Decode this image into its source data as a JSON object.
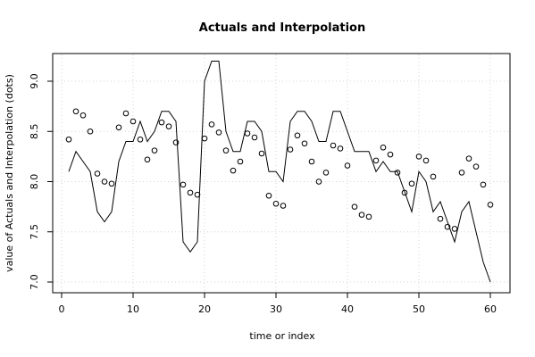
{
  "chart_data": {
    "type": "line",
    "title": "Actuals and Interpolation",
    "xlabel": "time or index",
    "ylabel": "value of Actuals and Interpolation (dots)",
    "xlim": [
      0,
      60
    ],
    "ylim": [
      7.0,
      9.2
    ],
    "x_ticks": [
      0,
      10,
      20,
      30,
      40,
      50,
      60
    ],
    "y_ticks": [
      7.0,
      7.5,
      8.0,
      8.5,
      9.0
    ],
    "x_tick_labels": [
      "0",
      "10",
      "20",
      "30",
      "40",
      "50",
      "60"
    ],
    "y_tick_labels": [
      "7.0",
      "7.5",
      "8.0",
      "8.5",
      "9.0"
    ],
    "grid": true,
    "grid_color": "#d3d3d3",
    "line_color": "#000000",
    "point_color": "#000000",
    "series": [
      {
        "style": "line",
        "x": [
          1,
          2,
          3,
          4,
          5,
          6,
          7,
          8,
          9,
          10,
          11,
          12,
          13,
          14,
          15,
          16,
          17,
          18,
          19,
          20,
          21,
          22,
          23,
          24,
          25,
          26,
          27,
          28,
          29,
          30,
          31,
          32,
          33,
          34,
          35,
          36,
          37,
          38,
          39,
          40,
          41,
          42,
          43,
          44,
          45,
          46,
          47,
          48,
          49,
          50,
          51,
          52,
          53,
          54,
          55,
          56,
          57,
          58,
          59,
          60
        ],
        "values": [
          8.1,
          8.3,
          8.2,
          8.1,
          7.7,
          7.6,
          7.7,
          8.2,
          8.4,
          8.4,
          8.6,
          8.4,
          8.5,
          8.7,
          8.7,
          8.6,
          7.4,
          7.3,
          7.4,
          9.0,
          9.2,
          9.2,
          8.5,
          8.3,
          8.3,
          8.6,
          8.6,
          8.5,
          8.1,
          8.1,
          8.0,
          8.6,
          8.7,
          8.7,
          8.6,
          8.4,
          8.4,
          8.7,
          8.7,
          8.5,
          8.3,
          8.3,
          8.3,
          8.1,
          8.2,
          8.1,
          8.1,
          7.9,
          7.7,
          8.1,
          8.0,
          7.7,
          7.8,
          7.6,
          7.4,
          7.7,
          7.8,
          7.5,
          7.2,
          7.0
        ]
      },
      {
        "style": "points",
        "x": [
          1,
          2,
          3,
          4,
          5,
          6,
          7,
          8,
          9,
          10,
          11,
          12,
          13,
          14,
          15,
          16,
          17,
          18,
          19,
          20,
          21,
          22,
          23,
          24,
          25,
          26,
          27,
          28,
          29,
          30,
          31,
          32,
          33,
          34,
          35,
          36,
          37,
          38,
          39,
          40,
          41,
          42,
          43,
          44,
          45,
          46,
          47,
          48,
          49,
          50,
          51,
          52,
          53,
          54,
          55,
          56,
          57,
          58,
          59,
          60
        ],
        "values": [
          8.42,
          8.7,
          8.66,
          8.5,
          8.08,
          8.0,
          7.98,
          8.54,
          8.68,
          8.6,
          8.42,
          8.22,
          8.31,
          8.59,
          8.55,
          8.39,
          7.97,
          7.89,
          7.87,
          8.43,
          8.57,
          8.49,
          8.31,
          8.11,
          8.2,
          8.48,
          8.44,
          8.28,
          7.86,
          7.78,
          7.76,
          8.32,
          8.46,
          8.38,
          8.2,
          8.0,
          8.09,
          8.36,
          8.33,
          8.16,
          7.75,
          7.67,
          7.65,
          8.21,
          8.34,
          8.27,
          8.09,
          7.89,
          7.98,
          8.25,
          8.21,
          8.05,
          7.63,
          7.55,
          7.53,
          8.09,
          8.23,
          8.15,
          7.97,
          7.77
        ]
      }
    ]
  }
}
